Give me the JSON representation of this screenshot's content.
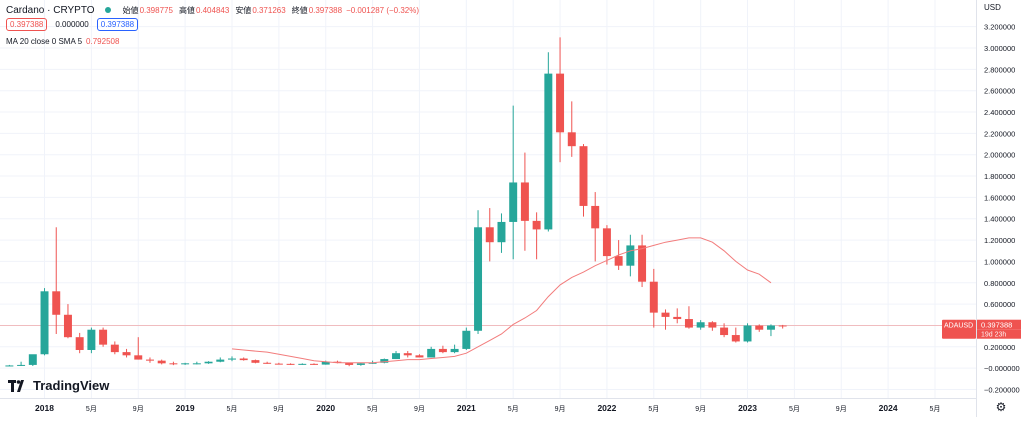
{
  "header": {
    "symbol": "Cardano · CRYPTO",
    "ohlc": [
      {
        "label": "始値",
        "value": "0.398775"
      },
      {
        "label": "高値",
        "value": "0.404843"
      },
      {
        "label": "安値",
        "value": "0.371263"
      },
      {
        "label": "終値",
        "value": "0.397388"
      }
    ],
    "change": "−0.001287 (−0.32%)",
    "boxes": [
      "0.397388",
      "0.000000",
      "0.397388"
    ],
    "ma_label": "MA 20 close 0 SMA 5",
    "ma_value": "0.792508"
  },
  "logo_text": "TradingView",
  "price_label": {
    "symbol": "ADAUSD",
    "value": "0.397388",
    "countdown": "19d 23h"
  },
  "colors": {
    "up": "#26a69a",
    "down": "#ef5350",
    "ma": "#f27c7c",
    "grid": "#f0f3fa",
    "axis_text": "#131722"
  },
  "chart_data": {
    "type": "candlestick",
    "title": "",
    "currency": "USD",
    "y_ticks": [
      3.2,
      3.0,
      2.8,
      2.6,
      2.4,
      2.2,
      2.0,
      1.8,
      1.6,
      1.4,
      1.2,
      1.0,
      0.8,
      0.6,
      0.4,
      0.2,
      0.0,
      -0.2
    ],
    "y_tick_labels": [
      "3.200000",
      "3.000000",
      "2.800000",
      "2.600000",
      "2.400000",
      "2.200000",
      "2.000000",
      "1.800000",
      "1.600000",
      "1.400000",
      "1.200000",
      "1.000000",
      "0.800000",
      "0.600000",
      "0.400000",
      "0.200000",
      "−0.000000",
      "−0.200000"
    ],
    "ylim": [
      -0.28,
      3.45
    ],
    "x_ticks": [
      {
        "label": "2018",
        "t": 0,
        "bold": true
      },
      {
        "label": "5月",
        "t": 4
      },
      {
        "label": "9月",
        "t": 8
      },
      {
        "label": "2019",
        "t": 12,
        "bold": true
      },
      {
        "label": "5月",
        "t": 16
      },
      {
        "label": "9月",
        "t": 20
      },
      {
        "label": "2020",
        "t": 24,
        "bold": true
      },
      {
        "label": "5月",
        "t": 28
      },
      {
        "label": "9月",
        "t": 32
      },
      {
        "label": "2021",
        "t": 36,
        "bold": true
      },
      {
        "label": "5月",
        "t": 40
      },
      {
        "label": "9月",
        "t": 44
      },
      {
        "label": "2022",
        "t": 48,
        "bold": true
      },
      {
        "label": "5月",
        "t": 52
      },
      {
        "label": "9月",
        "t": 56
      },
      {
        "label": "2023",
        "t": 60,
        "bold": true
      },
      {
        "label": "5月",
        "t": 64
      },
      {
        "label": "9月",
        "t": 68
      },
      {
        "label": "2024",
        "t": 72,
        "bold": true
      },
      {
        "label": "5月",
        "t": 76
      }
    ],
    "xlim": [
      -3.8,
      79.5
    ],
    "candles": [
      {
        "t": -3,
        "o": 0.02,
        "h": 0.03,
        "l": 0.018,
        "c": 0.025
      },
      {
        "t": -2,
        "o": 0.025,
        "h": 0.06,
        "l": 0.02,
        "c": 0.03
      },
      {
        "t": -1,
        "o": 0.03,
        "h": 0.12,
        "l": 0.02,
        "c": 0.13
      },
      {
        "t": 0,
        "o": 0.13,
        "h": 0.75,
        "l": 0.12,
        "c": 0.72
      },
      {
        "t": 1,
        "o": 0.72,
        "h": 1.32,
        "l": 0.32,
        "c": 0.5
      },
      {
        "t": 2,
        "o": 0.5,
        "h": 0.6,
        "l": 0.28,
        "c": 0.29
      },
      {
        "t": 3,
        "o": 0.29,
        "h": 0.33,
        "l": 0.14,
        "c": 0.17
      },
      {
        "t": 4,
        "o": 0.17,
        "h": 0.38,
        "l": 0.14,
        "c": 0.36
      },
      {
        "t": 5,
        "o": 0.36,
        "h": 0.38,
        "l": 0.2,
        "c": 0.22
      },
      {
        "t": 6,
        "o": 0.22,
        "h": 0.25,
        "l": 0.13,
        "c": 0.15
      },
      {
        "t": 7,
        "o": 0.15,
        "h": 0.18,
        "l": 0.1,
        "c": 0.12
      },
      {
        "t": 8,
        "o": 0.12,
        "h": 0.29,
        "l": 0.08,
        "c": 0.08
      },
      {
        "t": 9,
        "o": 0.08,
        "h": 0.1,
        "l": 0.05,
        "c": 0.07
      },
      {
        "t": 10,
        "o": 0.07,
        "h": 0.08,
        "l": 0.035,
        "c": 0.045
      },
      {
        "t": 11,
        "o": 0.045,
        "h": 0.06,
        "l": 0.028,
        "c": 0.04
      },
      {
        "t": 12,
        "o": 0.04,
        "h": 0.05,
        "l": 0.03,
        "c": 0.045
      },
      {
        "t": 13,
        "o": 0.045,
        "h": 0.06,
        "l": 0.035,
        "c": 0.045
      },
      {
        "t": 14,
        "o": 0.045,
        "h": 0.065,
        "l": 0.04,
        "c": 0.06
      },
      {
        "t": 15,
        "o": 0.06,
        "h": 0.1,
        "l": 0.055,
        "c": 0.08
      },
      {
        "t": 16,
        "o": 0.08,
        "h": 0.11,
        "l": 0.065,
        "c": 0.09
      },
      {
        "t": 17,
        "o": 0.09,
        "h": 0.1,
        "l": 0.07,
        "c": 0.075
      },
      {
        "t": 18,
        "o": 0.075,
        "h": 0.08,
        "l": 0.045,
        "c": 0.05
      },
      {
        "t": 19,
        "o": 0.05,
        "h": 0.06,
        "l": 0.04,
        "c": 0.042
      },
      {
        "t": 20,
        "o": 0.042,
        "h": 0.05,
        "l": 0.035,
        "c": 0.04
      },
      {
        "t": 21,
        "o": 0.04,
        "h": 0.045,
        "l": 0.03,
        "c": 0.035
      },
      {
        "t": 22,
        "o": 0.035,
        "h": 0.045,
        "l": 0.03,
        "c": 0.04
      },
      {
        "t": 23,
        "o": 0.04,
        "h": 0.045,
        "l": 0.03,
        "c": 0.033
      },
      {
        "t": 24,
        "o": 0.033,
        "h": 0.07,
        "l": 0.032,
        "c": 0.06
      },
      {
        "t": 25,
        "o": 0.06,
        "h": 0.07,
        "l": 0.045,
        "c": 0.048
      },
      {
        "t": 26,
        "o": 0.048,
        "h": 0.05,
        "l": 0.018,
        "c": 0.03
      },
      {
        "t": 27,
        "o": 0.03,
        "h": 0.05,
        "l": 0.022,
        "c": 0.045
      },
      {
        "t": 28,
        "o": 0.045,
        "h": 0.07,
        "l": 0.04,
        "c": 0.05
      },
      {
        "t": 29,
        "o": 0.05,
        "h": 0.09,
        "l": 0.045,
        "c": 0.085
      },
      {
        "t": 30,
        "o": 0.085,
        "h": 0.16,
        "l": 0.085,
        "c": 0.14
      },
      {
        "t": 31,
        "o": 0.14,
        "h": 0.16,
        "l": 0.1,
        "c": 0.12
      },
      {
        "t": 32,
        "o": 0.12,
        "h": 0.13,
        "l": 0.1,
        "c": 0.1
      },
      {
        "t": 33,
        "o": 0.1,
        "h": 0.2,
        "l": 0.1,
        "c": 0.18
      },
      {
        "t": 34,
        "o": 0.18,
        "h": 0.21,
        "l": 0.14,
        "c": 0.15
      },
      {
        "t": 35,
        "o": 0.15,
        "h": 0.22,
        "l": 0.14,
        "c": 0.18
      },
      {
        "t": 36,
        "o": 0.18,
        "h": 0.38,
        "l": 0.17,
        "c": 0.35
      },
      {
        "t": 37,
        "o": 0.35,
        "h": 1.48,
        "l": 0.32,
        "c": 1.32
      },
      {
        "t": 38,
        "o": 1.32,
        "h": 1.5,
        "l": 1.0,
        "c": 1.18
      },
      {
        "t": 39,
        "o": 1.18,
        "h": 1.45,
        "l": 1.08,
        "c": 1.37
      },
      {
        "t": 40,
        "o": 1.37,
        "h": 2.46,
        "l": 1.02,
        "c": 1.74
      },
      {
        "t": 41,
        "o": 1.74,
        "h": 2.02,
        "l": 1.1,
        "c": 1.38
      },
      {
        "t": 42,
        "o": 1.38,
        "h": 1.46,
        "l": 1.02,
        "c": 1.3
      },
      {
        "t": 43,
        "o": 1.3,
        "h": 2.96,
        "l": 1.28,
        "c": 2.76
      },
      {
        "t": 44,
        "o": 2.76,
        "h": 3.1,
        "l": 1.93,
        "c": 2.21
      },
      {
        "t": 45,
        "o": 2.21,
        "h": 2.5,
        "l": 1.98,
        "c": 2.08
      },
      {
        "t": 46,
        "o": 2.08,
        "h": 2.1,
        "l": 1.42,
        "c": 1.52
      },
      {
        "t": 47,
        "o": 1.52,
        "h": 1.65,
        "l": 1.0,
        "c": 1.31
      },
      {
        "t": 48,
        "o": 1.31,
        "h": 1.34,
        "l": 0.97,
        "c": 1.05
      },
      {
        "t": 49,
        "o": 1.05,
        "h": 1.2,
        "l": 0.92,
        "c": 0.96
      },
      {
        "t": 50,
        "o": 0.96,
        "h": 1.25,
        "l": 0.86,
        "c": 1.15
      },
      {
        "t": 51,
        "o": 1.15,
        "h": 1.25,
        "l": 0.76,
        "c": 0.81
      },
      {
        "t": 52,
        "o": 0.81,
        "h": 0.93,
        "l": 0.38,
        "c": 0.52
      },
      {
        "t": 53,
        "o": 0.52,
        "h": 0.55,
        "l": 0.36,
        "c": 0.48
      },
      {
        "t": 54,
        "o": 0.48,
        "h": 0.56,
        "l": 0.42,
        "c": 0.46
      },
      {
        "t": 55,
        "o": 0.46,
        "h": 0.58,
        "l": 0.37,
        "c": 0.38
      },
      {
        "t": 56,
        "o": 0.38,
        "h": 0.45,
        "l": 0.36,
        "c": 0.43
      },
      {
        "t": 57,
        "o": 0.43,
        "h": 0.44,
        "l": 0.35,
        "c": 0.38
      },
      {
        "t": 58,
        "o": 0.38,
        "h": 0.42,
        "l": 0.29,
        "c": 0.31
      },
      {
        "t": 59,
        "o": 0.31,
        "h": 0.38,
        "l": 0.24,
        "c": 0.25
      },
      {
        "t": 60,
        "o": 0.25,
        "h": 0.42,
        "l": 0.24,
        "c": 0.4
      },
      {
        "t": 61,
        "o": 0.4,
        "h": 0.41,
        "l": 0.34,
        "c": 0.36
      },
      {
        "t": 62,
        "o": 0.36,
        "h": 0.41,
        "l": 0.3,
        "c": 0.4
      },
      {
        "t": 63,
        "o": 0.4,
        "h": 0.405,
        "l": 0.371,
        "c": 0.397
      }
    ],
    "ma": {
      "name": "MA 20 close 0 SMA 5",
      "points": [
        [
          16,
          0.18
        ],
        [
          17,
          0.17
        ],
        [
          18,
          0.16
        ],
        [
          19,
          0.15
        ],
        [
          20,
          0.13
        ],
        [
          21,
          0.11
        ],
        [
          22,
          0.09
        ],
        [
          23,
          0.07
        ],
        [
          24,
          0.06
        ],
        [
          25,
          0.05
        ],
        [
          26,
          0.05
        ],
        [
          27,
          0.05
        ],
        [
          28,
          0.05
        ],
        [
          29,
          0.06
        ],
        [
          30,
          0.07
        ],
        [
          31,
          0.08
        ],
        [
          32,
          0.08
        ],
        [
          33,
          0.09
        ],
        [
          34,
          0.1
        ],
        [
          35,
          0.11
        ],
        [
          36,
          0.14
        ],
        [
          37,
          0.2
        ],
        [
          38,
          0.26
        ],
        [
          39,
          0.32
        ],
        [
          40,
          0.41
        ],
        [
          41,
          0.47
        ],
        [
          42,
          0.54
        ],
        [
          43,
          0.67
        ],
        [
          44,
          0.78
        ],
        [
          45,
          0.85
        ],
        [
          46,
          0.9
        ],
        [
          47,
          0.96
        ],
        [
          48,
          1.01
        ],
        [
          49,
          1.06
        ],
        [
          50,
          1.1
        ],
        [
          51,
          1.12
        ],
        [
          52,
          1.15
        ],
        [
          53,
          1.18
        ],
        [
          54,
          1.2
        ],
        [
          55,
          1.22
        ],
        [
          56,
          1.22
        ],
        [
          57,
          1.18
        ],
        [
          58,
          1.1
        ],
        [
          59,
          1.0
        ],
        [
          60,
          0.92
        ],
        [
          61,
          0.88
        ],
        [
          62,
          0.8
        ]
      ]
    },
    "last_price": 0.397388
  }
}
